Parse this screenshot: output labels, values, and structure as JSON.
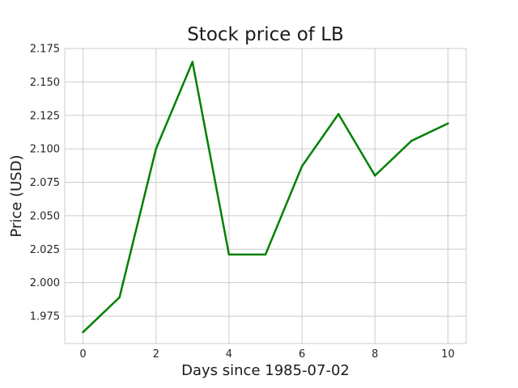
{
  "chart_data": {
    "type": "line",
    "title": "Stock price of LB",
    "xlabel": "Days since 1985-07-02",
    "ylabel": "Price (USD)",
    "x": [
      0,
      1,
      2,
      3,
      4,
      5,
      6,
      7,
      8,
      9,
      10
    ],
    "series": [
      {
        "values": [
          1.963,
          1.989,
          2.1,
          2.165,
          2.021,
          2.021,
          2.087,
          2.126,
          2.08,
          2.106,
          2.119
        ],
        "color": "#008000"
      }
    ],
    "xlim": [
      -0.5,
      10.5
    ],
    "ylim": [
      1.9545,
      2.175
    ],
    "xticks": [
      0,
      2,
      4,
      6,
      8,
      10
    ],
    "xtick_labels": [
      "0",
      "2",
      "4",
      "6",
      "8",
      "10"
    ],
    "yticks": [
      1.975,
      2.0,
      2.025,
      2.05,
      2.075,
      2.1,
      2.125,
      2.15,
      2.175
    ],
    "ytick_labels": [
      "1.975",
      "2.000",
      "2.025",
      "2.050",
      "2.075",
      "2.100",
      "2.125",
      "2.150",
      "2.175"
    ],
    "grid": true,
    "legend": "none"
  }
}
